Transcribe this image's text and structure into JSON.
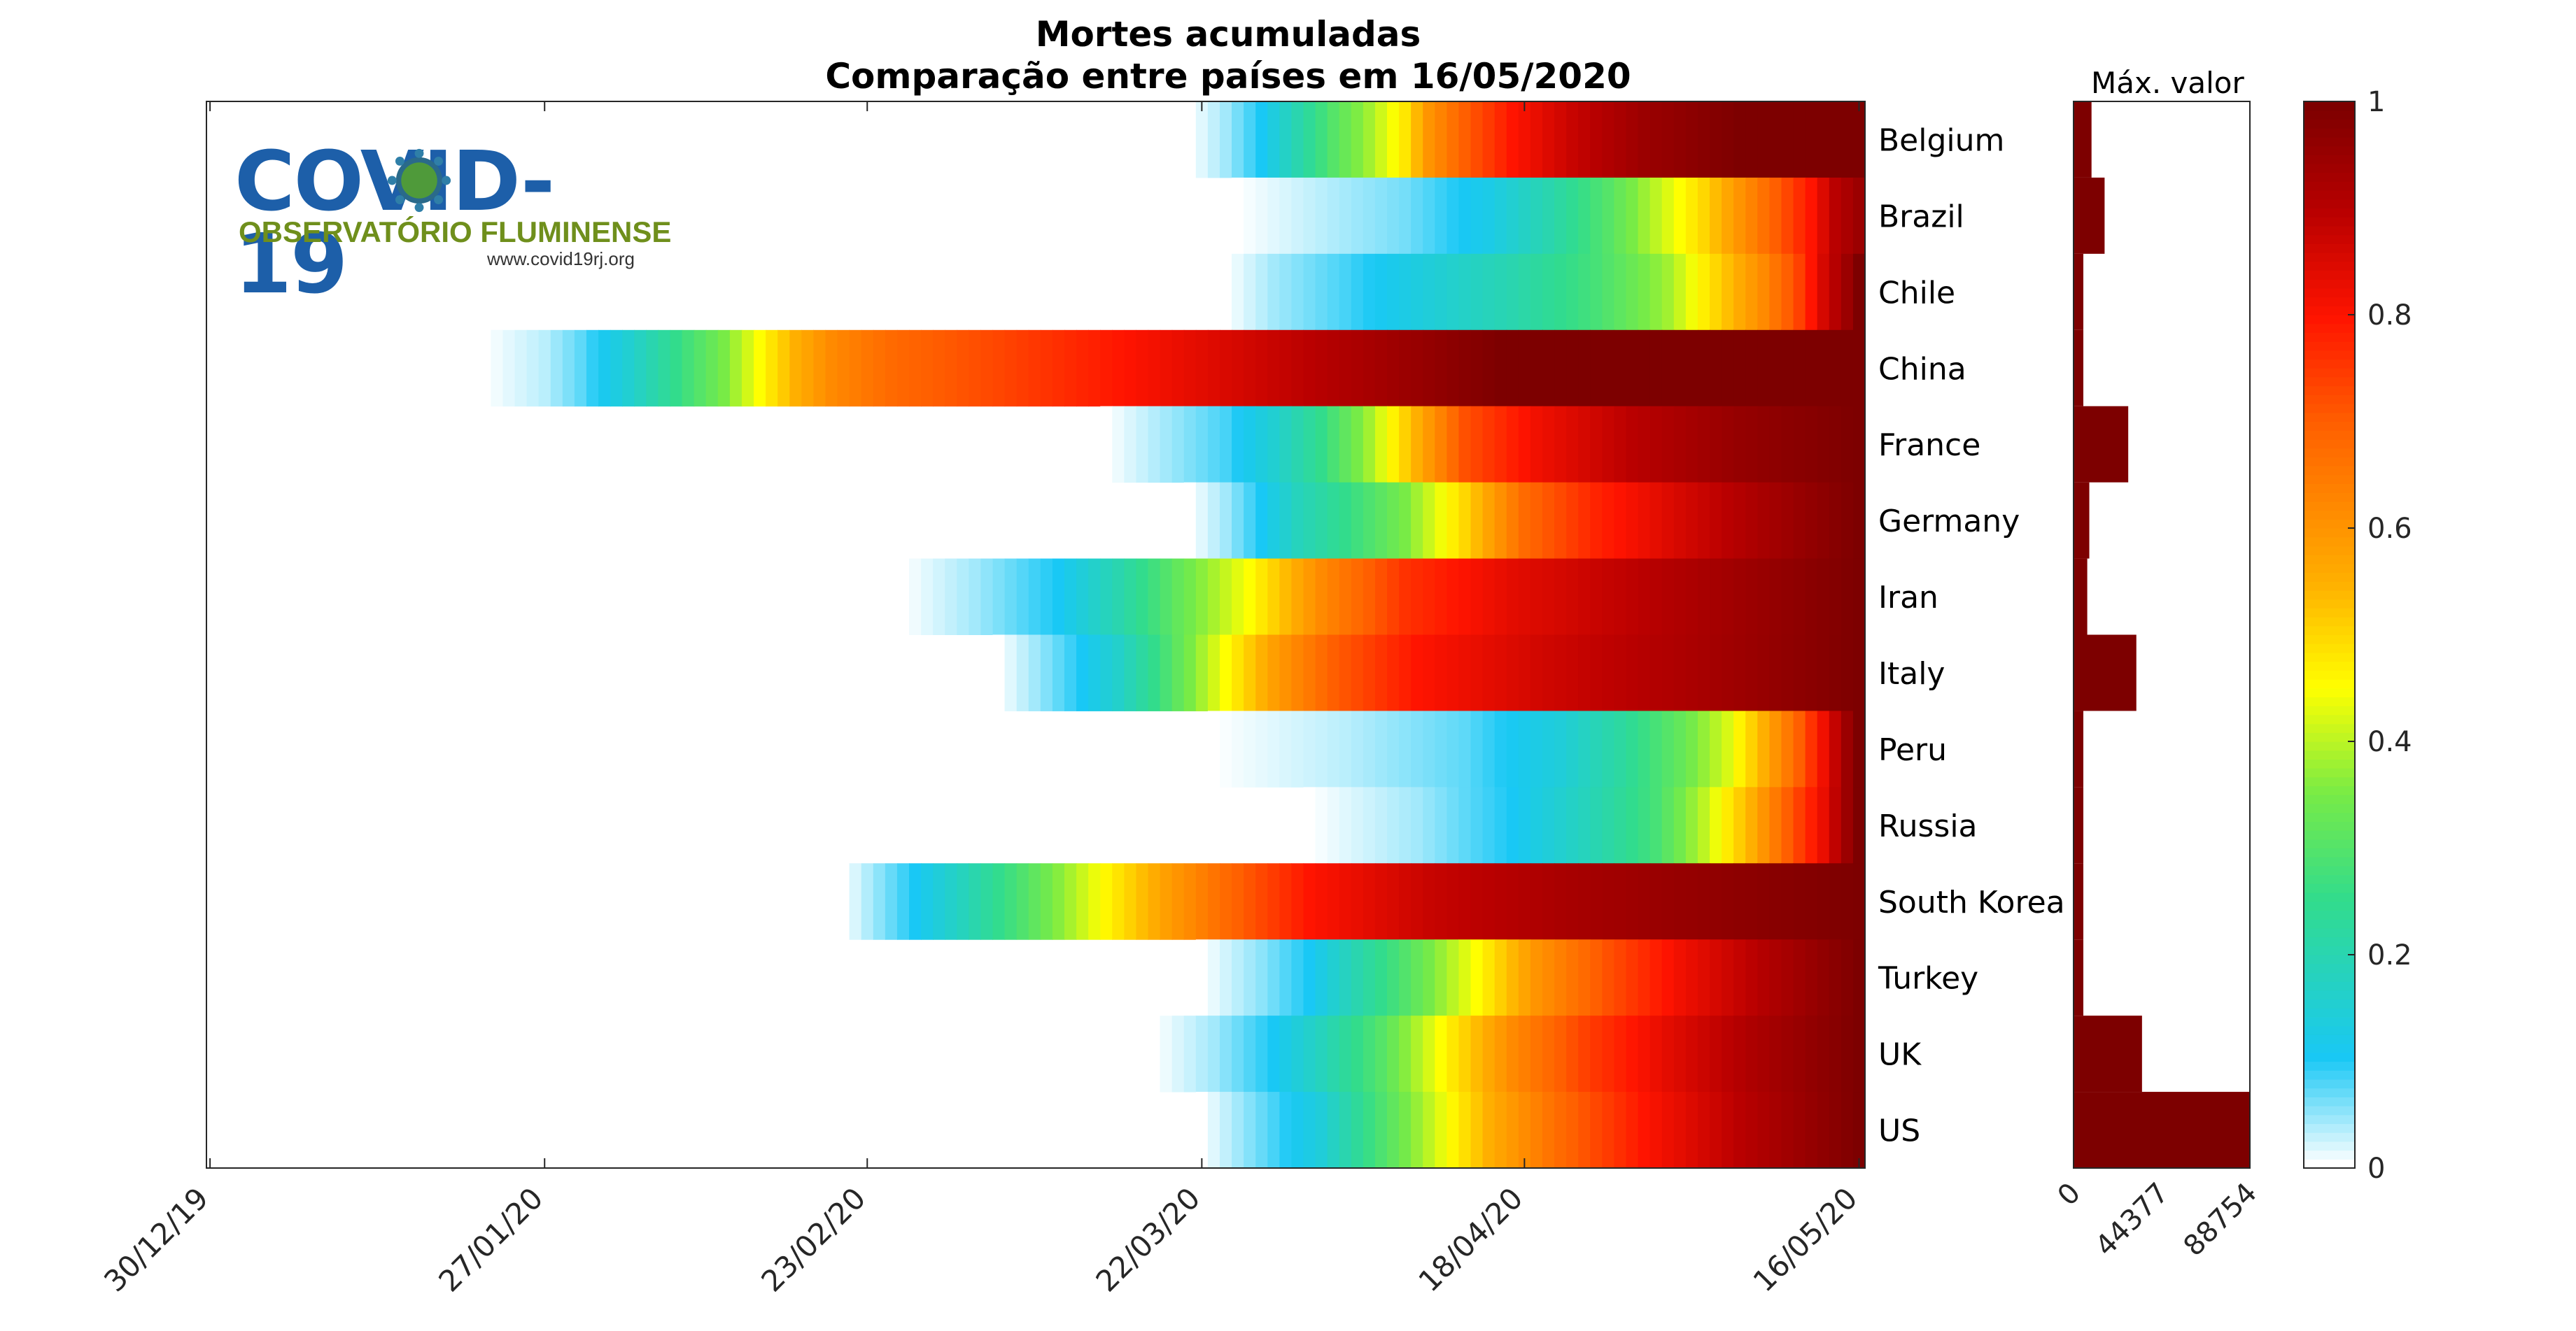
{
  "chart_data": {
    "type": "heatmap",
    "title": [
      "Mortes acumuladas",
      "Comparação entre países em 16/05/2020"
    ],
    "x_ticks": [
      "30/12/19",
      "27/01/20",
      "23/02/20",
      "22/03/20",
      "18/04/20",
      "16/05/20"
    ],
    "x_range": [
      "30/12/19",
      "16/05/20"
    ],
    "countries": [
      "Belgium",
      "Brazil",
      "Chile",
      "China",
      "France",
      "Germany",
      "Iran",
      "Italy",
      "Peru",
      "Russia",
      "South Korea",
      "Turkey",
      "UK",
      "US"
    ],
    "rows": [
      {
        "start": "21/03/20",
        "segments": [
          [
            "21/03/20",
            0.0
          ],
          [
            "24/03/20",
            0.04
          ],
          [
            "27/03/20",
            0.1
          ],
          [
            "30/03/20",
            0.2
          ],
          [
            "02/04/20",
            0.3
          ],
          [
            "05/04/20",
            0.38
          ],
          [
            "08/04/20",
            0.48
          ],
          [
            "10/04/20",
            0.6
          ],
          [
            "13/04/20",
            0.7
          ],
          [
            "17/04/20",
            0.8
          ],
          [
            "22/04/20",
            0.88
          ],
          [
            "28/04/20",
            0.95
          ],
          [
            "06/05/20",
            1.0
          ]
        ],
        "end_value": 1.0
      },
      {
        "start": "25/03/20",
        "segments": [
          [
            "25/03/20",
            0.0
          ],
          [
            "01/04/20",
            0.03
          ],
          [
            "08/04/20",
            0.06
          ],
          [
            "15/04/20",
            0.12
          ],
          [
            "20/04/20",
            0.2
          ],
          [
            "25/04/20",
            0.3
          ],
          [
            "29/04/20",
            0.4
          ],
          [
            "03/05/20",
            0.5
          ],
          [
            "06/05/20",
            0.6
          ],
          [
            "09/05/20",
            0.7
          ],
          [
            "12/05/20",
            0.8
          ],
          [
            "14/05/20",
            0.9
          ]
        ],
        "end_value": 0.95
      },
      {
        "start": "24/03/20",
        "segments": [
          [
            "24/03/20",
            0.0
          ],
          [
            "28/03/20",
            0.04
          ],
          [
            "03/04/20",
            0.08
          ],
          [
            "10/04/20",
            0.14
          ],
          [
            "17/04/20",
            0.2
          ],
          [
            "24/04/20",
            0.28
          ],
          [
            "30/04/20",
            0.38
          ],
          [
            "04/05/20",
            0.5
          ],
          [
            "08/05/20",
            0.62
          ],
          [
            "11/05/20",
            0.74
          ],
          [
            "13/05/20",
            0.86
          ],
          [
            "15/05/20",
            0.95
          ]
        ],
        "end_value": 1.0
      },
      {
        "start": "22/01/20",
        "segments": [
          [
            "22/01/20",
            0.0
          ],
          [
            "27/01/20",
            0.03
          ],
          [
            "30/01/20",
            0.07
          ],
          [
            "03/02/20",
            0.15
          ],
          [
            "07/02/20",
            0.25
          ],
          [
            "11/02/20",
            0.35
          ],
          [
            "14/02/20",
            0.45
          ],
          [
            "17/02/20",
            0.55
          ],
          [
            "20/02/20",
            0.62
          ],
          [
            "25/02/20",
            0.68
          ],
          [
            "06/03/20",
            0.74
          ],
          [
            "16/04/20",
            1.0
          ]
        ],
        "end_value": 1.0
      },
      {
        "start": "14/03/20",
        "segments": [
          [
            "14/03/20",
            0.0
          ],
          [
            "19/03/20",
            0.04
          ],
          [
            "24/03/20",
            0.08
          ],
          [
            "28/03/20",
            0.15
          ],
          [
            "01/04/20",
            0.25
          ],
          [
            "05/04/20",
            0.38
          ],
          [
            "09/04/20",
            0.55
          ],
          [
            "13/04/20",
            0.72
          ],
          [
            "19/04/20",
            0.82
          ],
          [
            "27/04/20",
            0.9
          ],
          [
            "06/05/20",
            0.96
          ]
        ],
        "end_value": 1.0
      },
      {
        "start": "21/03/20",
        "segments": [
          [
            "21/03/20",
            0.0
          ],
          [
            "24/03/20",
            0.04
          ],
          [
            "27/03/20",
            0.1
          ],
          [
            "30/03/20",
            0.18
          ],
          [
            "03/04/20",
            0.25
          ],
          [
            "08/04/20",
            0.35
          ],
          [
            "13/04/20",
            0.5
          ],
          [
            "18/04/20",
            0.68
          ],
          [
            "24/04/20",
            0.78
          ],
          [
            "01/05/20",
            0.86
          ],
          [
            "08/05/20",
            0.93
          ]
        ],
        "end_value": 1.0
      },
      {
        "start": "26/02/20",
        "segments": [
          [
            "26/02/20",
            0.0
          ],
          [
            "03/03/20",
            0.04
          ],
          [
            "10/03/20",
            0.1
          ],
          [
            "15/03/20",
            0.2
          ],
          [
            "20/03/20",
            0.32
          ],
          [
            "26/03/20",
            0.45
          ],
          [
            "01/04/20",
            0.62
          ],
          [
            "08/04/20",
            0.76
          ],
          [
            "17/04/20",
            0.84
          ],
          [
            "28/04/20",
            0.9
          ],
          [
            "07/05/20",
            0.95
          ]
        ],
        "end_value": 1.0
      },
      {
        "start": "05/03/20",
        "segments": [
          [
            "05/03/20",
            0.0
          ],
          [
            "08/03/20",
            0.04
          ],
          [
            "12/03/20",
            0.1
          ],
          [
            "15/03/20",
            0.16
          ],
          [
            "18/03/20",
            0.25
          ],
          [
            "21/03/20",
            0.35
          ],
          [
            "24/03/20",
            0.45
          ],
          [
            "28/03/20",
            0.58
          ],
          [
            "02/04/20",
            0.7
          ],
          [
            "09/04/20",
            0.8
          ],
          [
            "20/04/20",
            0.87
          ],
          [
            "01/05/20",
            0.92
          ]
        ],
        "end_value": 1.0
      },
      {
        "start": "23/03/20",
        "segments": [
          [
            "23/03/20",
            0.0
          ],
          [
            "03/04/20",
            0.03
          ],
          [
            "13/04/20",
            0.07
          ],
          [
            "21/04/20",
            0.14
          ],
          [
            "26/04/20",
            0.22
          ],
          [
            "01/05/20",
            0.32
          ],
          [
            "05/05/20",
            0.42
          ],
          [
            "08/05/20",
            0.55
          ],
          [
            "11/05/20",
            0.7
          ],
          [
            "13/05/20",
            0.82
          ],
          [
            "15/05/20",
            0.95
          ]
        ],
        "end_value": 1.0
      },
      {
        "start": "31/03/20",
        "segments": [
          [
            "31/03/20",
            0.0
          ],
          [
            "09/04/20",
            0.04
          ],
          [
            "17/04/20",
            0.1
          ],
          [
            "23/04/20",
            0.18
          ],
          [
            "29/04/20",
            0.28
          ],
          [
            "03/05/20",
            0.4
          ],
          [
            "07/05/20",
            0.55
          ],
          [
            "10/05/20",
            0.7
          ],
          [
            "13/05/20",
            0.83
          ],
          [
            "15/05/20",
            0.95
          ]
        ],
        "end_value": 1.0
      },
      {
        "start": "21/02/20",
        "segments": [
          [
            "21/02/20",
            0.0
          ],
          [
            "24/02/20",
            0.05
          ],
          [
            "27/02/20",
            0.1
          ],
          [
            "02/03/20",
            0.18
          ],
          [
            "06/03/20",
            0.27
          ],
          [
            "10/03/20",
            0.36
          ],
          [
            "14/03/20",
            0.46
          ],
          [
            "19/03/20",
            0.58
          ],
          [
            "24/03/20",
            0.68
          ],
          [
            "31/03/20",
            0.8
          ],
          [
            "10/04/20",
            0.88
          ],
          [
            "22/04/20",
            0.93
          ],
          [
            "05/05/20",
            0.97
          ]
        ],
        "end_value": 1.0
      },
      {
        "start": "22/03/20",
        "segments": [
          [
            "22/03/20",
            0.0
          ],
          [
            "27/03/20",
            0.05
          ],
          [
            "31/03/20",
            0.1
          ],
          [
            "04/04/20",
            0.2
          ],
          [
            "09/04/20",
            0.32
          ],
          [
            "14/04/20",
            0.45
          ],
          [
            "19/04/20",
            0.6
          ],
          [
            "25/04/20",
            0.72
          ],
          [
            "01/05/20",
            0.82
          ],
          [
            "08/05/20",
            0.91
          ]
        ],
        "end_value": 1.0
      },
      {
        "start": "18/03/20",
        "segments": [
          [
            "18/03/20",
            0.0
          ],
          [
            "23/03/20",
            0.04
          ],
          [
            "28/03/20",
            0.1
          ],
          [
            "01/04/20",
            0.18
          ],
          [
            "06/04/20",
            0.3
          ],
          [
            "11/04/20",
            0.45
          ],
          [
            "17/04/20",
            0.62
          ],
          [
            "23/04/20",
            0.74
          ],
          [
            "30/04/20",
            0.84
          ],
          [
            "07/05/20",
            0.92
          ]
        ],
        "end_value": 1.0
      },
      {
        "start": "22/03/20",
        "segments": [
          [
            "22/03/20",
            0.0
          ],
          [
            "25/03/20",
            0.04
          ],
          [
            "28/03/20",
            0.08
          ],
          [
            "01/04/20",
            0.14
          ],
          [
            "05/04/20",
            0.26
          ],
          [
            "10/04/20",
            0.4
          ],
          [
            "15/04/20",
            0.55
          ],
          [
            "21/04/20",
            0.68
          ],
          [
            "28/04/20",
            0.8
          ],
          [
            "06/05/20",
            0.9
          ]
        ],
        "end_value": 1.0
      }
    ],
    "max_value": {
      "label": "Máx. valor",
      "ticks": [
        "0",
        "44377",
        "88754"
      ],
      "x_range": [
        0,
        88754
      ],
      "values": [
        9052,
        15633,
        4502,
        4637,
        27529,
        7935,
        6902,
        31610,
        2523,
        2631,
        262,
        4096,
        34466,
        88754
      ]
    },
    "colorbar": {
      "colormap": "white-cyan-green-yellow-red-darkred",
      "range": [
        0,
        1
      ],
      "ticks": [
        "0",
        "0.2",
        "0.4",
        "0.6",
        "0.8",
        "1"
      ]
    },
    "grid": false,
    "legend": "colorbar-right"
  },
  "logo": {
    "title": "COVID-19",
    "subtitle": "OBSERVATÓRIO FLUMINENSE",
    "url": "www.covid19rj.org"
  }
}
